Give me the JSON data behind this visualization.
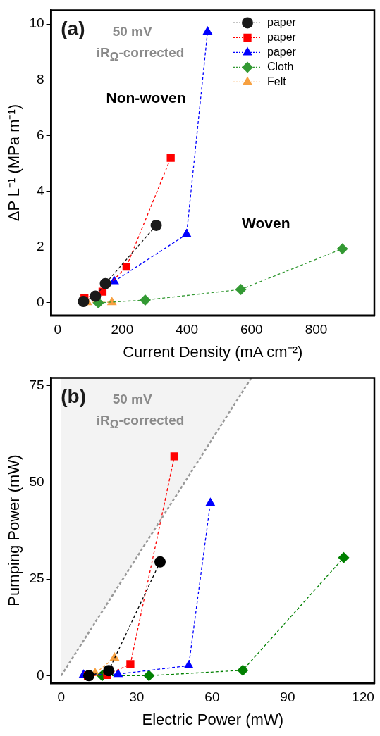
{
  "chart_data": [
    {
      "type": "line",
      "xlabel": "Current Density (mA cm⁻²)",
      "ylabel": "ΔP L⁻¹ (MPa m⁻¹)",
      "xlim": [
        -20,
        980
      ],
      "xticks": [
        0,
        200,
        400,
        600,
        800
      ],
      "ylim": [
        -0.45,
        10.5
      ],
      "yticks": [
        0,
        2,
        4,
        6,
        8,
        10
      ],
      "grid": false,
      "legend": "top right",
      "line_style": "dashed",
      "annotations": [
        "(a)",
        "50 mV",
        "iR$_{Ω}$-corrected",
        "Non-woven",
        "Woven"
      ],
      "series": [
        {
          "name": "paper",
          "color": "#1a1a1a",
          "marker": "circle",
          "x": [
            80,
            117,
            148,
            305
          ],
          "values": [
            0.05,
            0.24,
            0.69,
            2.78
          ]
        },
        {
          "name": "paper",
          "color": "#ff0000",
          "marker": "square",
          "x": [
            83,
            139,
            213,
            350
          ],
          "values": [
            0.16,
            0.4,
            1.3,
            5.2
          ]
        },
        {
          "name": "paper",
          "color": "#0000ff",
          "marker": "triangle",
          "x": [
            175,
            399,
            464
          ],
          "values": [
            0.77,
            2.46,
            9.73
          ]
        },
        {
          "name": "Cloth",
          "color": "#339933",
          "marker": "diamond",
          "x": [
            126,
            271,
            567,
            881
          ],
          "values": [
            0,
            0.1,
            0.48,
            1.94
          ]
        },
        {
          "name": "Felt",
          "color": "#f7a040",
          "marker": "triangle",
          "x": [
            92,
            168
          ],
          "values": [
            0.02,
            0.02
          ]
        }
      ]
    },
    {
      "type": "line",
      "xlabel": "Electric Power (mW)",
      "ylabel": "Pumping Power (mW)",
      "xlim": [
        -4,
        124.5
      ],
      "xticks": [
        0,
        30,
        60,
        90,
        120
      ],
      "ylim": [
        -1.9,
        77
      ],
      "yticks": [
        0,
        25,
        50,
        75
      ],
      "grid": false,
      "legend": false,
      "line_style": "dashed",
      "annotations": [
        "(b)",
        "50 mV",
        "iR$_{Ω}$-corrected"
      ],
      "series": [
        {
          "color": "#999999",
          "marker": "none",
          "x": [
            0,
            75.6
          ],
          "values": [
            0,
            77
          ],
          "lower": [
            0,
            77
          ],
          "upper": [
            77,
            77
          ]
        },
        {
          "color": "#000000",
          "marker": "circle",
          "x": [
            11,
            18.9,
            39.3
          ],
          "values": [
            0,
            1.3,
            29.4
          ]
        },
        {
          "color": "#ff0000",
          "marker": "square",
          "x": [
            10.6,
            18.3,
            27.5,
            45
          ],
          "values": [
            0,
            0.2,
            3,
            56.7
          ]
        },
        {
          "color": "#0000ff",
          "marker": "triangle",
          "x": [
            8.9,
            22.6,
            50.7,
            59.3
          ],
          "values": [
            0.2,
            0.4,
            2.6,
            44.6
          ]
        },
        {
          "color": "#008000",
          "marker": "diamond",
          "x": [
            16.3,
            34.9,
            72.2,
            112.3
          ],
          "values": [
            0,
            0,
            1.4,
            30.5
          ]
        },
        {
          "color": "#f7a040",
          "marker": "triangle",
          "x": [
            13.5,
            21.2
          ],
          "values": [
            0.6,
            4.6
          ]
        }
      ]
    }
  ]
}
